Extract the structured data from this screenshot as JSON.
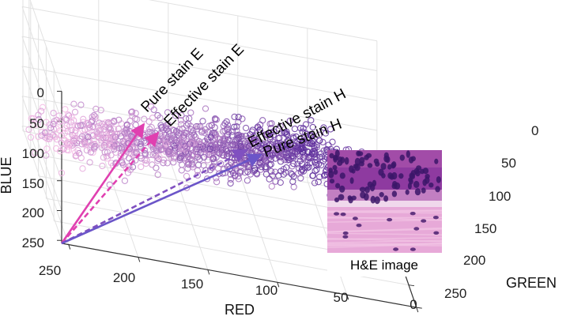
{
  "chart_data": {
    "type": "scatter",
    "title": "",
    "projection": "3d",
    "axes": {
      "x": {
        "label": "RED",
        "ticks": [
          "250",
          "200",
          "150",
          "100",
          "50",
          "0"
        ],
        "range": [
          0,
          255
        ]
      },
      "y": {
        "label": "GREEN",
        "ticks": [
          "0",
          "50",
          "100",
          "150",
          "200",
          "250"
        ],
        "range": [
          0,
          255
        ]
      },
      "z": {
        "label": "BLUE",
        "ticks": [
          "0",
          "50",
          "100",
          "150",
          "200",
          "250"
        ],
        "range": [
          0,
          255
        ]
      }
    },
    "grid": true,
    "point_marker": "open circle",
    "point_color_range": [
      "#f4b8e4",
      "#5a2b9a"
    ],
    "point_count_visible": "approximately 1200",
    "vectors": [
      {
        "label": "Pure stain E",
        "color": "#e040b0",
        "style": "solid"
      },
      {
        "label": "Effective stain E",
        "color": "#e040b0",
        "style": "dashed"
      },
      {
        "label": "Effective stain H",
        "color": "#8050c0",
        "style": "dashed"
      },
      {
        "label": "Pure stain H",
        "color": "#6b55c8",
        "style": "solid"
      }
    ],
    "inset": {
      "caption": "H&E image"
    }
  }
}
